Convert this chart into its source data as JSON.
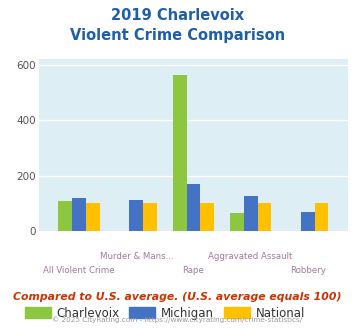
{
  "title_line1": "2019 Charlevoix",
  "title_line2": "Violent Crime Comparison",
  "categories": [
    "All Violent Crime",
    "Murder & Mans...",
    "Rape",
    "Aggravated Assault",
    "Robbery"
  ],
  "charlevoix": [
    110,
    0,
    565,
    65,
    0
  ],
  "michigan": [
    120,
    113,
    170,
    128,
    68
  ],
  "national": [
    100,
    100,
    100,
    100,
    100
  ],
  "charlevoix_color": "#8dc63f",
  "michigan_color": "#4472c4",
  "national_color": "#ffc000",
  "ylim": [
    0,
    620
  ],
  "yticks": [
    0,
    200,
    400,
    600
  ],
  "plot_bg": "#ddeef5",
  "title_color": "#1f5fa6",
  "xlabel_color": "#9e7b9b",
  "footer_text": "Compared to U.S. average. (U.S. average equals 100)",
  "credit_text": "© 2025 CityRating.com - https://www.cityrating.com/crime-statistics/",
  "legend_labels": [
    "Charlevoix",
    "Michigan",
    "National"
  ]
}
